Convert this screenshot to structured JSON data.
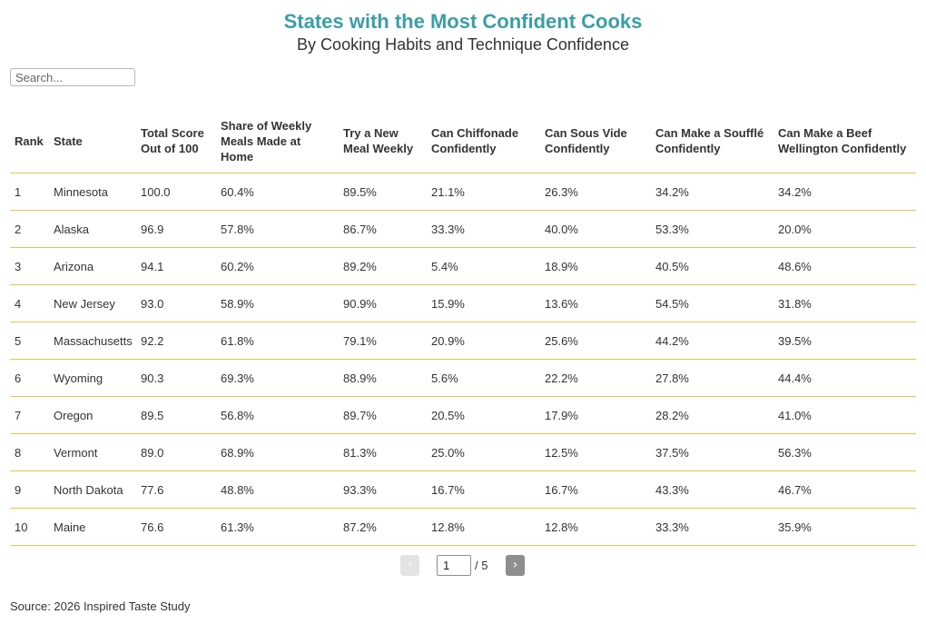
{
  "title": "States with the Most Confident Cooks",
  "subtitle": "By Cooking Habits and Technique Confidence",
  "search": {
    "placeholder": "Search..."
  },
  "table": {
    "columns": [
      "Rank",
      "State",
      "Total Score Out of 100",
      "Share of Weekly Meals Made at Home",
      "Try a New Meal Weekly",
      "Can Chiffonade Confidently",
      "Can Sous Vide Confidently",
      "Can Make a Soufflé Confidently",
      "Can Make a Beef Wellington Confidently"
    ],
    "rows": [
      [
        "1",
        "Minnesota",
        "100.0",
        "60.4%",
        "89.5%",
        "21.1%",
        "26.3%",
        "34.2%",
        "34.2%"
      ],
      [
        "2",
        "Alaska",
        "96.9",
        "57.8%",
        "86.7%",
        "33.3%",
        "40.0%",
        "53.3%",
        "20.0%"
      ],
      [
        "3",
        "Arizona",
        "94.1",
        "60.2%",
        "89.2%",
        "5.4%",
        "18.9%",
        "40.5%",
        "48.6%"
      ],
      [
        "4",
        "New Jersey",
        "93.0",
        "58.9%",
        "90.9%",
        "15.9%",
        "13.6%",
        "54.5%",
        "31.8%"
      ],
      [
        "5",
        "Massachusetts",
        "92.2",
        "61.8%",
        "79.1%",
        "20.9%",
        "25.6%",
        "44.2%",
        "39.5%"
      ],
      [
        "6",
        "Wyoming",
        "90.3",
        "69.3%",
        "88.9%",
        "5.6%",
        "22.2%",
        "27.8%",
        "44.4%"
      ],
      [
        "7",
        "Oregon",
        "89.5",
        "56.8%",
        "89.7%",
        "20.5%",
        "17.9%",
        "28.2%",
        "41.0%"
      ],
      [
        "8",
        "Vermont",
        "89.0",
        "68.9%",
        "81.3%",
        "25.0%",
        "12.5%",
        "37.5%",
        "56.3%"
      ],
      [
        "9",
        "North Dakota",
        "77.6",
        "48.8%",
        "93.3%",
        "16.7%",
        "16.7%",
        "43.3%",
        "46.7%"
      ],
      [
        "10",
        "Maine",
        "76.6",
        "61.3%",
        "87.2%",
        "12.8%",
        "12.8%",
        "33.3%",
        "35.9%"
      ]
    ]
  },
  "pagination": {
    "prev_icon": "chevron-left-icon",
    "prev_glyph": "‹",
    "next_icon": "chevron-right-icon",
    "next_glyph": "›",
    "current_page": "1",
    "total_label": "/ 5"
  },
  "source": "Source: 2026 Inspired Taste Study",
  "colors": {
    "title": "#3a9ea5",
    "row_border": "#e2c455",
    "next_button": "#8e8e8e",
    "prev_button_disabled": "#e3e3e3"
  }
}
